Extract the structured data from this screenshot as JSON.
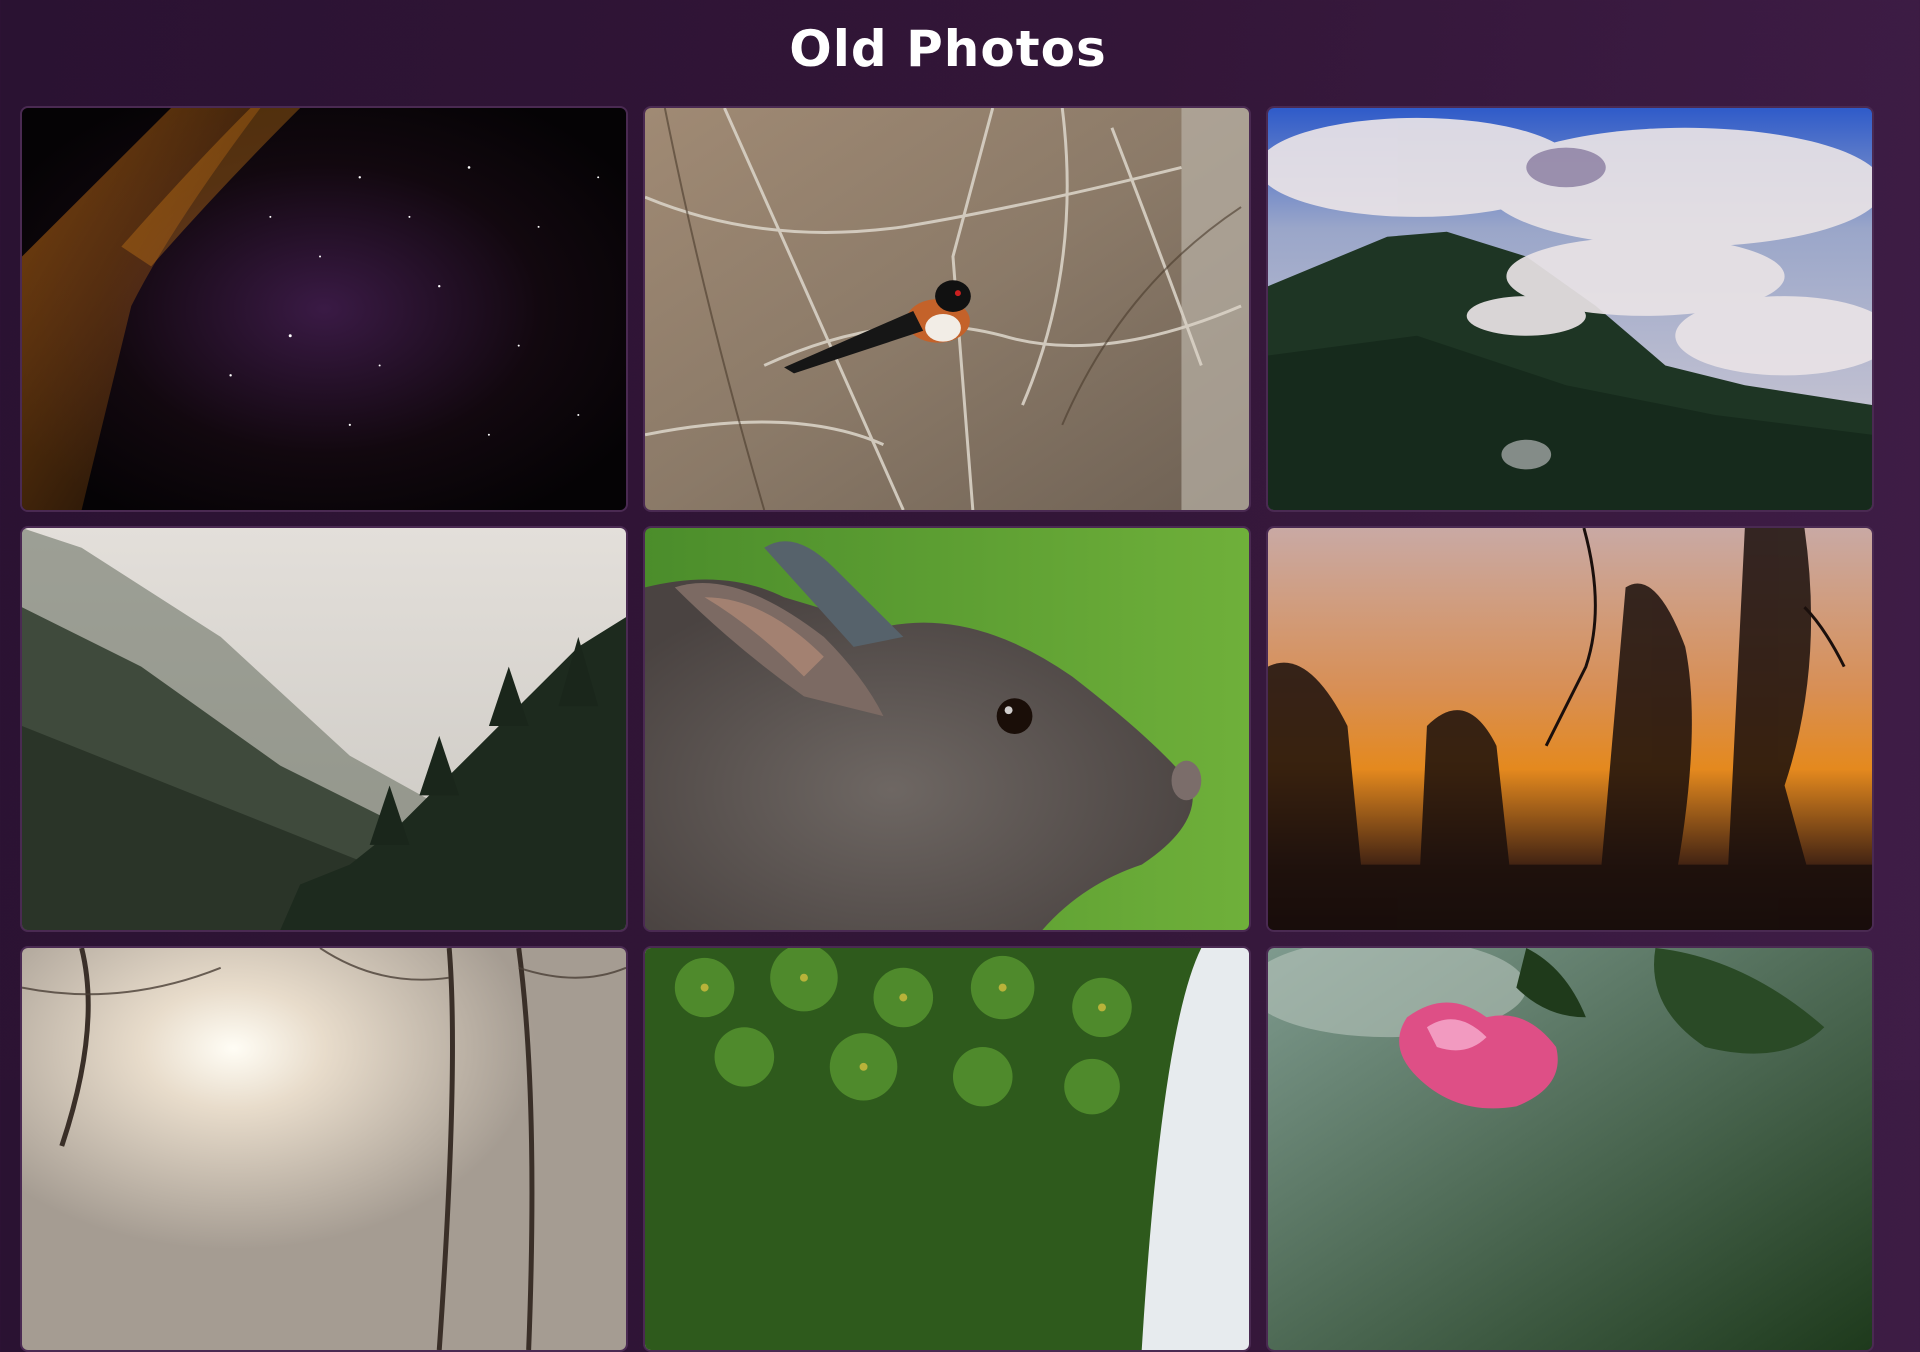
{
  "header": {
    "title": "Old Photos"
  },
  "photos": [
    {
      "subject": "night-sky-with-stars"
    },
    {
      "subject": "bird-on-branches"
    },
    {
      "subject": "clouded-mountain"
    },
    {
      "subject": "misty-forest-valley"
    },
    {
      "subject": "rabbit-closeup"
    },
    {
      "subject": "sunset-silhouette"
    },
    {
      "subject": "sun-through-trees"
    },
    {
      "subject": "green-shrub"
    },
    {
      "subject": "pink-rose"
    }
  ]
}
